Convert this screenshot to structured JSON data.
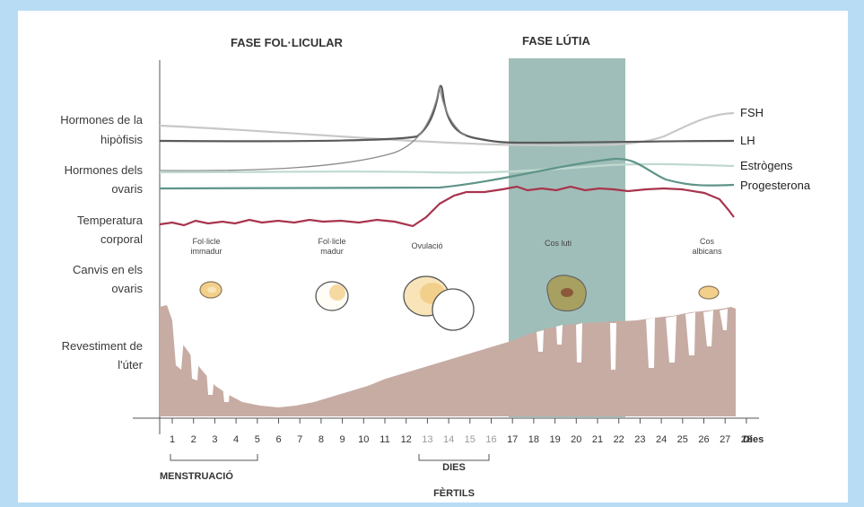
{
  "phases": {
    "follicular": "FASE FOL·LICULAR",
    "luteal": "FASE LÚTIA"
  },
  "row_labels": {
    "pituitary_1": "Hormones de la",
    "pituitary_2": "hipòfisis",
    "ovarian_1": "Hormones dels",
    "ovarian_2": "ovaris",
    "temp_1": "Temperatura",
    "temp_2": "corporal",
    "ovary_changes_1": "Canvis en els",
    "ovary_changes_2": "ovaris",
    "uterus_1": "Revestiment de",
    "uterus_2": "l'úter"
  },
  "hormones": {
    "fsh": "FSH",
    "lh": "LH",
    "estrogens": "Estrògens",
    "progesterone": "Progesterona"
  },
  "ovary_stages": {
    "immature_1": "Fol·licle",
    "immature_2": "immadur",
    "mature_1": "Fol·licle",
    "mature_2": "madur",
    "ovulation": "Ovulació",
    "corpus_luteum": "Cos luti",
    "albicans_1": "Cos",
    "albicans_2": "albicans"
  },
  "days": [
    "1",
    "2",
    "3",
    "4",
    "5",
    "6",
    "7",
    "8",
    "9",
    "10",
    "11",
    "12",
    "13",
    "14",
    "15",
    "16",
    "17",
    "18",
    "19",
    "20",
    "21",
    "22",
    "23",
    "24",
    "25",
    "26",
    "27",
    "28"
  ],
  "days_label": "Dies",
  "brackets": {
    "menstruation": "MENSTRUACIÓ",
    "fertile_1": "DIES",
    "fertile_2": "FÈRTILS"
  },
  "colors": {
    "page_border": "#b9dcf5",
    "luteal_band": "#8fb3ad",
    "fsh": "#c8c8c8",
    "lh": "#5a5a5a",
    "estrogens": "#bfd9d0",
    "progesterone": "#5f9488",
    "temperature": "#a8344e",
    "endometrium": "#c7aca4",
    "follicle": "#f3cf8c",
    "corpus_luteum": "#a8a060"
  }
}
